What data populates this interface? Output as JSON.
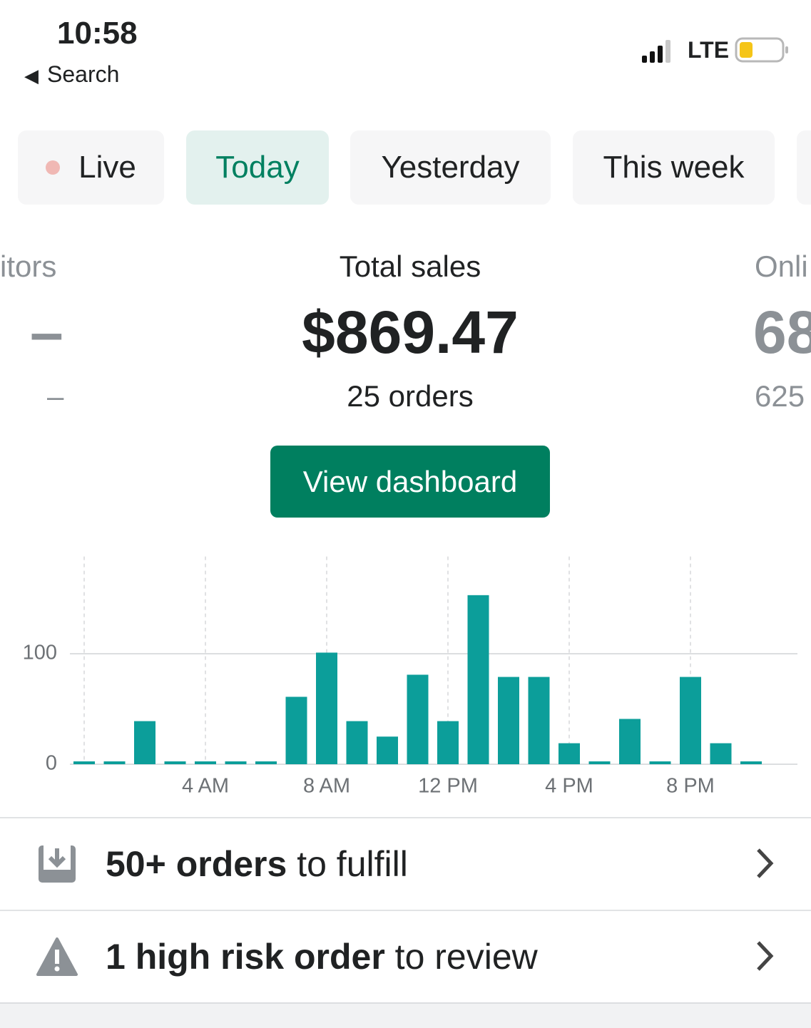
{
  "status_bar": {
    "time": "10:58",
    "back": "Search",
    "network": "LTE"
  },
  "tabs": [
    "Live",
    "Today",
    "Yesterday",
    "This week"
  ],
  "metrics": [
    {
      "label": "itors",
      "value": "–",
      "sub": "–"
    },
    {
      "label": "Total sales",
      "value": "$869.47",
      "sub": "25 orders"
    },
    {
      "label": "Onli",
      "value": "68",
      "sub": "625"
    }
  ],
  "button": "View dashboard",
  "chart_data": {
    "type": "bar",
    "color": "#0c9e9a",
    "categories": [
      null,
      null,
      null,
      null,
      "4 AM",
      null,
      null,
      null,
      "8 AM",
      null,
      null,
      null,
      "12 PM",
      null,
      null,
      null,
      "4 PM",
      null,
      null,
      null,
      "8 PM",
      null,
      null
    ],
    "values": [
      0,
      0,
      39,
      0,
      0,
      0,
      0,
      61,
      101,
      39,
      25,
      81,
      39,
      153,
      79,
      79,
      19,
      0,
      41,
      0,
      79,
      19,
      0
    ],
    "ylim": [
      0,
      188
    ],
    "yticks": [
      0,
      100
    ],
    "grid": true
  },
  "tasks": [
    {
      "bold": "50+ orders",
      "rest": " to fulfill"
    },
    {
      "bold": "1 high risk order",
      "rest": " to review"
    }
  ]
}
